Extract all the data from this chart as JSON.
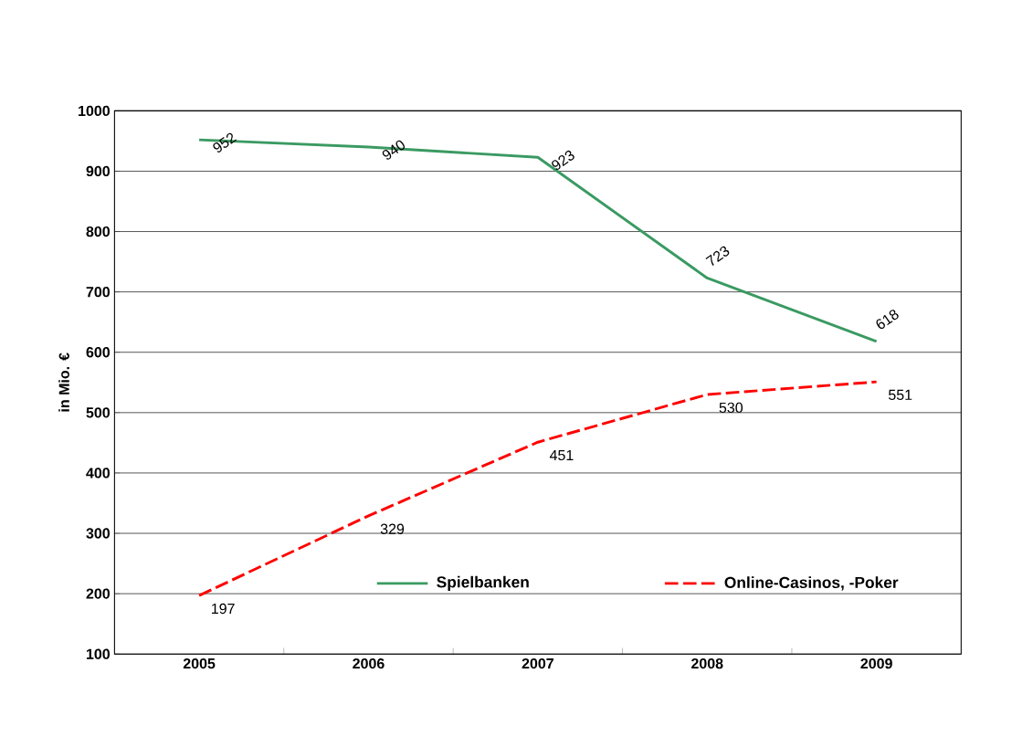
{
  "chart_data": {
    "type": "line",
    "ylabel": "in Mio. €",
    "categories": [
      "2005",
      "2006",
      "2007",
      "2008",
      "2009"
    ],
    "series": [
      {
        "name": "Spielbanken",
        "color": "#3a9a62",
        "line_style": "solid",
        "values": [
          952,
          940,
          923,
          723,
          618
        ]
      },
      {
        "name": "Online-Casinos, -Poker",
        "color": "#ff0000",
        "line_style": "dashed",
        "values": [
          197,
          329,
          451,
          530,
          551
        ]
      }
    ],
    "ylim": [
      100,
      1000
    ],
    "yticks": [
      100,
      200,
      300,
      400,
      500,
      600,
      700,
      800,
      900,
      1000
    ],
    "grid": "y",
    "legend": "bottom right",
    "marker": "none",
    "data_labels": true
  }
}
